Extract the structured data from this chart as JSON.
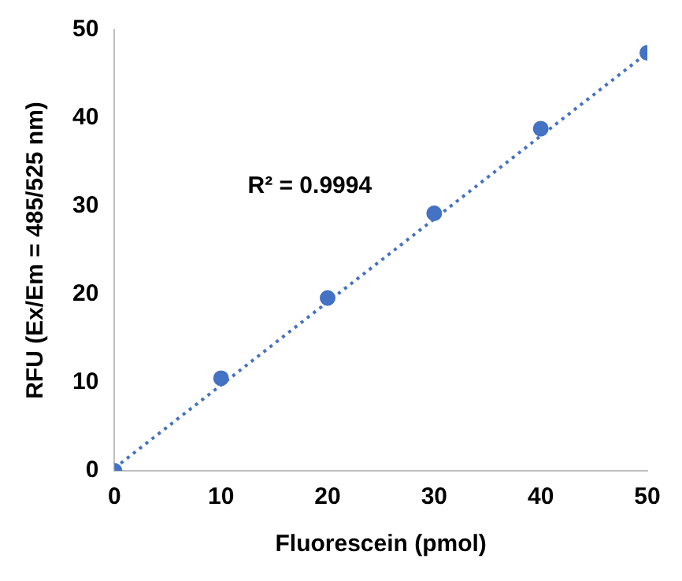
{
  "chart_data": {
    "type": "scatter",
    "xlabel": "Fluorescein (pmol)",
    "ylabel": "RFU (Ex/Em = 485/525 nm)",
    "x": [
      0,
      10,
      20,
      30,
      40,
      50
    ],
    "series": [
      {
        "color": "#4472c4",
        "values": [
          0,
          10.5,
          19.6,
          29.2,
          38.8,
          47.4
        ],
        "marker": "circle"
      },
      {
        "type": "line",
        "color": "#4472c4",
        "x": [
          0,
          50
        ],
        "values": [
          0.3,
          47.4
        ],
        "line_style": "dotted",
        "marker": "none"
      }
    ],
    "xlim": [
      0,
      50
    ],
    "ylim": [
      0,
      50
    ],
    "xticks": [
      0,
      10,
      20,
      30,
      40,
      50
    ],
    "yticks": [
      0,
      10,
      20,
      30,
      40,
      50
    ],
    "grid": false,
    "legend": false,
    "annotations": [
      "R² = 0.9994"
    ]
  }
}
